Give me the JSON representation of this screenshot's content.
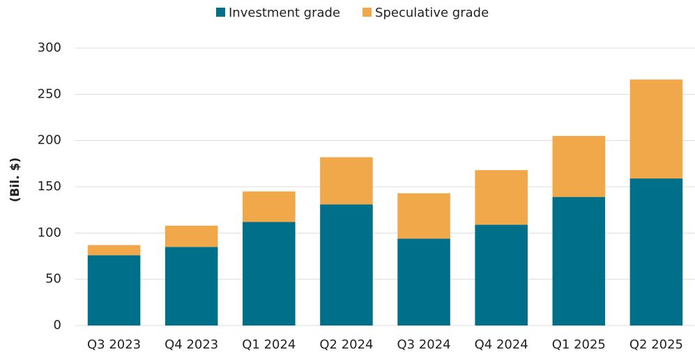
{
  "chart_data": {
    "type": "stacked_bar",
    "y_label": "(Bil. $)",
    "categories": [
      "Q3 2023",
      "Q4 2023",
      "Q1 2024",
      "Q2 2024",
      "Q3 2024",
      "Q4 2024",
      "Q1 2025",
      "Q2 2025"
    ],
    "series": [
      {
        "name": "Investment grade",
        "color": "#006f8a",
        "values": [
          76,
          85,
          112,
          131,
          94,
          109,
          139,
          159
        ]
      },
      {
        "name": "Speculative grade",
        "color": "#f0a84a",
        "values": [
          11,
          23,
          33,
          51,
          49,
          59,
          66,
          107
        ]
      }
    ],
    "ylim": [
      0,
      300
    ],
    "yticks": [
      0,
      50,
      100,
      150,
      200,
      250,
      300
    ],
    "grid": true,
    "legend": "top"
  }
}
